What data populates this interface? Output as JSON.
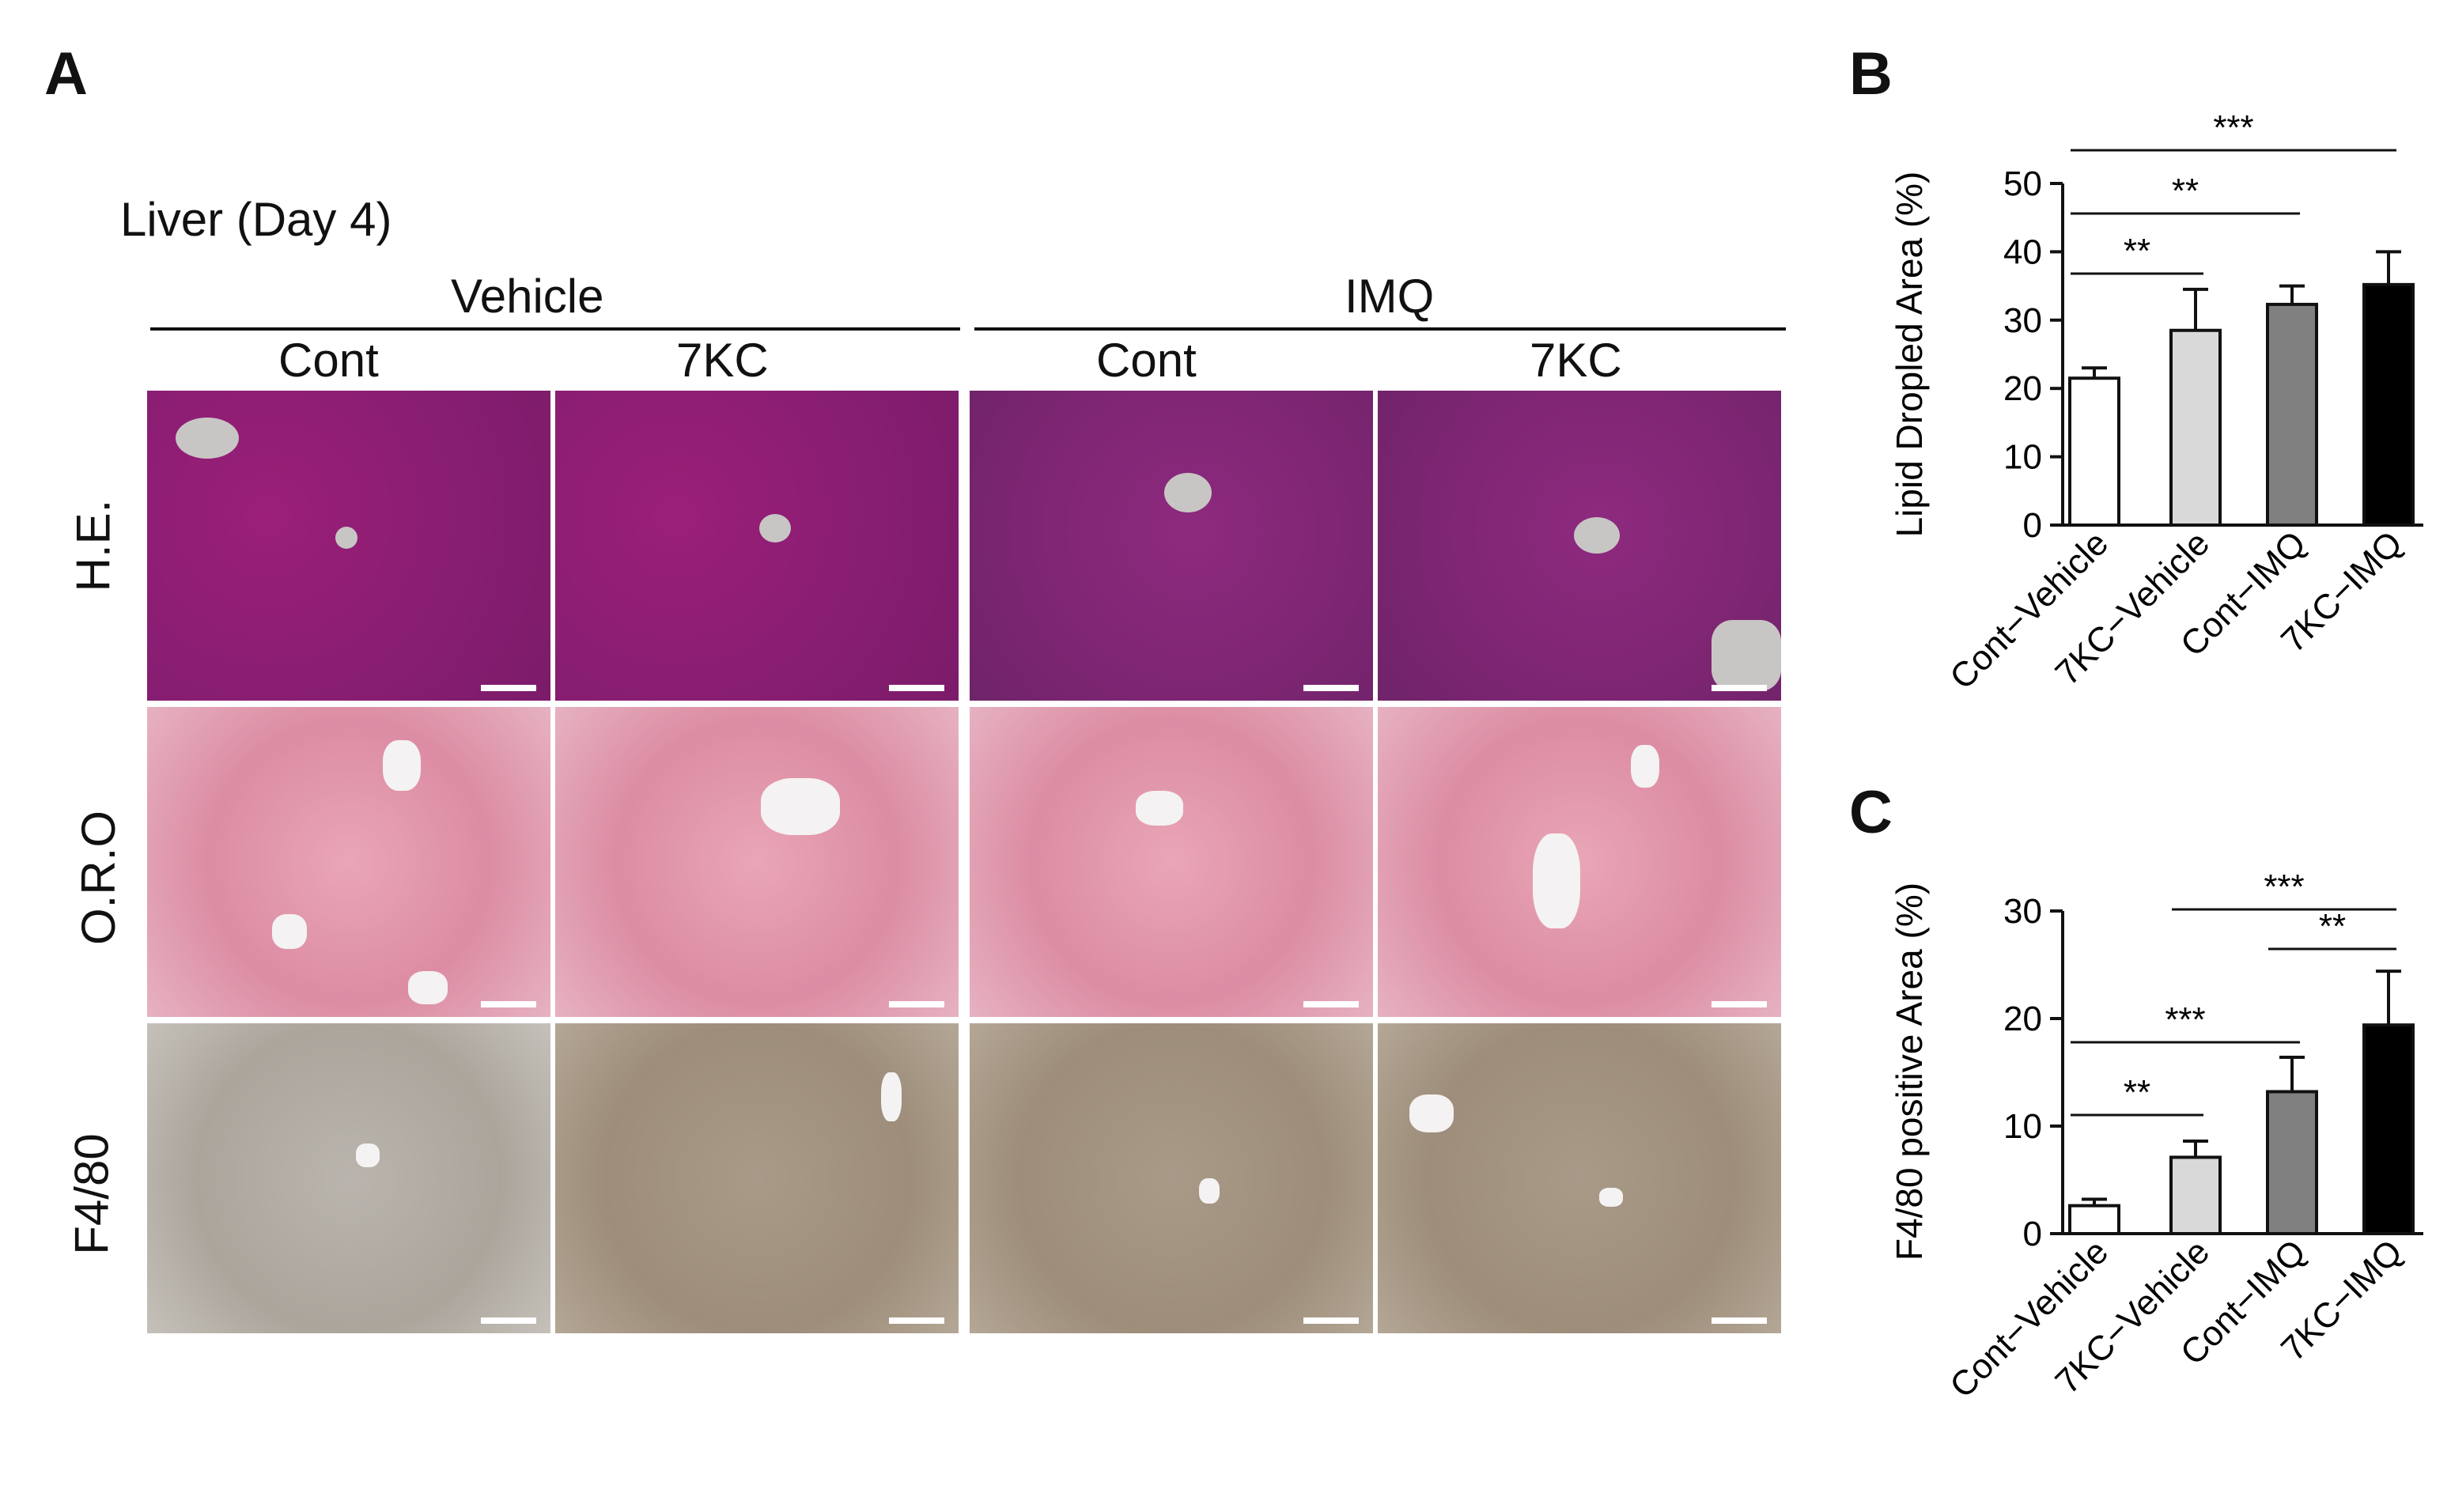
{
  "figure": {
    "panel_a": {
      "letter": "A",
      "subtitle": "Liver (Day 4)",
      "groups": [
        "Vehicle",
        "IMQ"
      ],
      "columns": [
        "Cont",
        "7KC",
        "Cont",
        "7KC"
      ],
      "rows": [
        "H.E.",
        "O.R.O",
        "F4/80"
      ]
    },
    "panel_b_letter": "B",
    "panel_c_letter": "C"
  },
  "chart_data": [
    {
      "type": "bar",
      "panel": "B",
      "categories": [
        "Cont−Vehicle",
        "7KC−Vehicle",
        "Cont−IMQ",
        "7KC−IMQ"
      ],
      "values": [
        21.5,
        28.5,
        32.3,
        35.2
      ],
      "errors": [
        1.5,
        6.0,
        2.7,
        4.8
      ],
      "bar_colors": [
        "#ffffff",
        "#d9d9d9",
        "#808080",
        "#000000"
      ],
      "ylabel": "Lipid Dropled Area (%)",
      "ylim": [
        0,
        50
      ],
      "yticks": [
        0,
        10,
        20,
        30,
        40,
        50
      ],
      "significance": [
        {
          "from": 0,
          "to": 1,
          "label": "**"
        },
        {
          "from": 0,
          "to": 2,
          "label": "**"
        },
        {
          "from": 0,
          "to": 3,
          "label": "***"
        }
      ]
    },
    {
      "type": "bar",
      "panel": "C",
      "categories": [
        "Cont−Vehicle",
        "7KC−Vehicle",
        "Cont−IMQ",
        "7KC−IMQ"
      ],
      "values": [
        2.6,
        7.1,
        13.2,
        19.4
      ],
      "errors": [
        0.6,
        1.5,
        3.2,
        5.0
      ],
      "bar_colors": [
        "#ffffff",
        "#d9d9d9",
        "#808080",
        "#000000"
      ],
      "ylabel": "F4/80 positive Area (%)",
      "ylim": [
        0,
        30
      ],
      "yticks": [
        0,
        10,
        20,
        30
      ],
      "significance": [
        {
          "from": 0,
          "to": 1,
          "label": "**"
        },
        {
          "from": 0,
          "to": 2,
          "label": "***"
        },
        {
          "from": 2,
          "to": 3,
          "label": "**"
        },
        {
          "from": 1,
          "to": 3,
          "label": "***"
        }
      ]
    }
  ]
}
